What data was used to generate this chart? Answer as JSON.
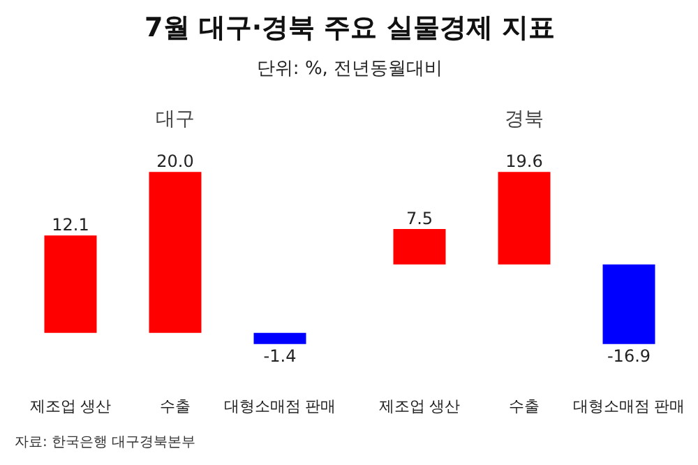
{
  "chart_data": [
    {
      "type": "other",
      "title": "7월 대구·경북 주요 실물경제 지표",
      "subtitle": "단위: %, 전년동월대비",
      "annotations": [
        "자료: 한국은행 대구경북본부"
      ]
    },
    {
      "type": "bar",
      "title": "대구",
      "categories": [
        "제조업 생산",
        "수출",
        "대형소매점 판매"
      ],
      "values": [
        12.1,
        20.0,
        -1.4
      ],
      "colors": [
        "#ff0000",
        "#ff0000",
        "#0000ff"
      ],
      "value_labels": [
        "12.1",
        "20.0",
        "-1.4"
      ]
    },
    {
      "type": "bar",
      "title": "경북",
      "categories": [
        "제조업 생산",
        "수출",
        "대형소매점 판매"
      ],
      "values": [
        7.5,
        19.6,
        -16.9
      ],
      "colors": [
        "#ff0000",
        "#ff0000",
        "#0000ff"
      ],
      "value_labels": [
        "7.5",
        "19.6",
        "-16.9"
      ]
    }
  ]
}
